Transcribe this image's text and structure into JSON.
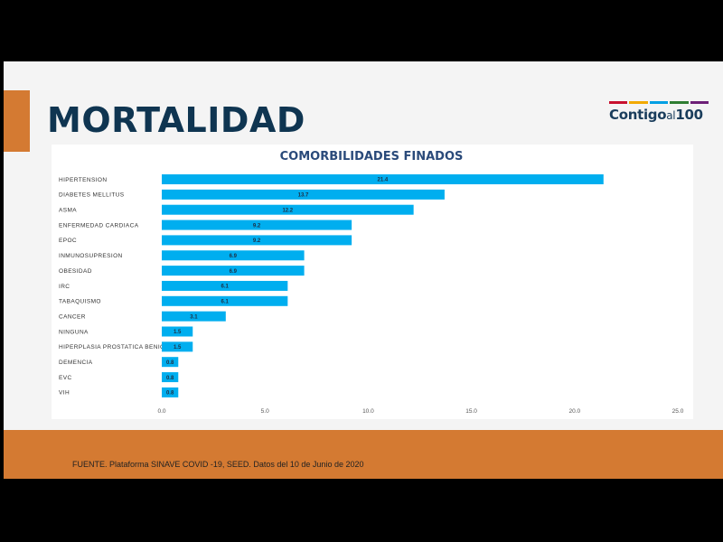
{
  "slide": {
    "title": "MORTALIDAD",
    "logo": {
      "text_part1": "Contigo",
      "text_part2": "al",
      "text_part3": "100",
      "bar_colors": [
        "#c8102e",
        "#f2a900",
        "#009fe3",
        "#2e7d32",
        "#6d2077"
      ]
    },
    "footer": "FUENTE. Plataforma SINAVE COVID -19, SEED. Datos del 10 de Junio de 2020",
    "colors": {
      "accent": "#d47a32",
      "title": "#0f3551",
      "bar": "#00aeef"
    }
  },
  "chart_data": {
    "type": "bar",
    "orientation": "horizontal",
    "title": "COMORBILIDADES FINADOS",
    "categories": [
      "HIPERTENSION",
      "DIABETES MELLITUS",
      "ASMA",
      "ENFERMEDAD CARDIACA",
      "EPOC",
      "INMUNOSUPRESION",
      "OBESIDAD",
      "IRC",
      "TABAQUISMO",
      "CANCER",
      "NINGUNA",
      "HIPERPLASIA PROSTATICA BENIGNA",
      "DEMENCIA",
      "EVC",
      "VIH"
    ],
    "values": [
      21.4,
      13.7,
      12.2,
      9.2,
      9.2,
      6.9,
      6.9,
      6.1,
      6.1,
      3.1,
      1.5,
      1.5,
      0.8,
      0.8,
      0.8
    ],
    "value_labels": [
      "21.4",
      "13.7",
      "12.2",
      "9.2",
      "9.2",
      "6.9",
      "6.9",
      "6.1",
      "6.1",
      "3.1",
      "1.5",
      "1.5",
      "0.8",
      "0.8",
      "0.8"
    ],
    "xticks": [
      "0.0",
      "5.0",
      "10.0",
      "15.0",
      "20.0",
      "25.0"
    ],
    "xlim": [
      0,
      25
    ],
    "grid": false,
    "legend": "none"
  }
}
